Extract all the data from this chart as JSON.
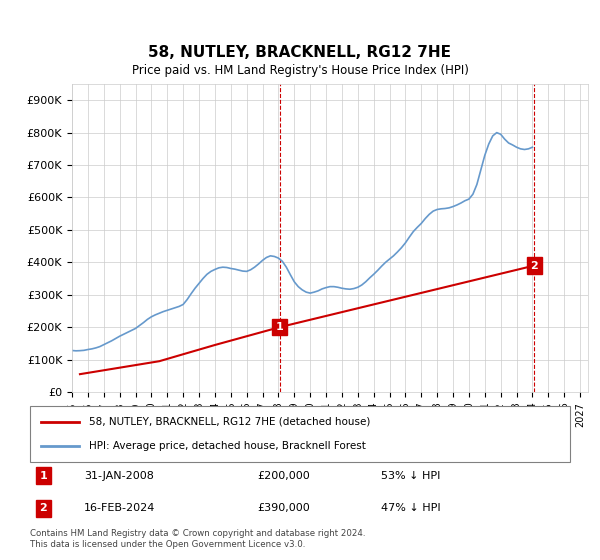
{
  "title": "58, NUTLEY, BRACKNELL, RG12 7HE",
  "subtitle": "Price paid vs. HM Land Registry's House Price Index (HPI)",
  "background_color": "#ffffff",
  "grid_color": "#cccccc",
  "ylim": [
    0,
    950000
  ],
  "yticks": [
    0,
    100000,
    200000,
    300000,
    400000,
    500000,
    600000,
    700000,
    800000,
    900000
  ],
  "ytick_labels": [
    "£0",
    "£100K",
    "£200K",
    "£300K",
    "£400K",
    "£500K",
    "£600K",
    "£700K",
    "£800K",
    "£900K"
  ],
  "xlim_start": 1995.0,
  "xlim_end": 2027.5,
  "xtick_years": [
    1995,
    1996,
    1997,
    1998,
    1999,
    2000,
    2001,
    2002,
    2003,
    2004,
    2005,
    2006,
    2007,
    2008,
    2009,
    2010,
    2011,
    2012,
    2013,
    2014,
    2015,
    2016,
    2017,
    2018,
    2019,
    2020,
    2021,
    2022,
    2023,
    2024,
    2025,
    2026,
    2027
  ],
  "transaction_color": "#cc0000",
  "hpi_color": "#6699cc",
  "marker1_x": 2008.08,
  "marker1_y": 200000,
  "marker2_x": 2024.12,
  "marker2_y": 390000,
  "annotation_box_color": "#cc0000",
  "legend_box_color": "#dddddd",
  "footer_text": "Contains HM Land Registry data © Crown copyright and database right 2024.\nThis data is licensed under the Open Government Licence v3.0.",
  "legend1_label": "58, NUTLEY, BRACKNELL, RG12 7HE (detached house)",
  "legend2_label": "HPI: Average price, detached house, Bracknell Forest",
  "table_row1": [
    "1",
    "31-JAN-2008",
    "£200,000",
    "53% ↓ HPI"
  ],
  "table_row2": [
    "2",
    "16-FEB-2024",
    "£390,000",
    "47% ↓ HPI"
  ],
  "hpi_x": [
    1995.0,
    1995.25,
    1995.5,
    1995.75,
    1996.0,
    1996.25,
    1996.5,
    1996.75,
    1997.0,
    1997.25,
    1997.5,
    1997.75,
    1998.0,
    1998.25,
    1998.5,
    1998.75,
    1999.0,
    1999.25,
    1999.5,
    1999.75,
    2000.0,
    2000.25,
    2000.5,
    2000.75,
    2001.0,
    2001.25,
    2001.5,
    2001.75,
    2002.0,
    2002.25,
    2002.5,
    2002.75,
    2003.0,
    2003.25,
    2003.5,
    2003.75,
    2004.0,
    2004.25,
    2004.5,
    2004.75,
    2005.0,
    2005.25,
    2005.5,
    2005.75,
    2006.0,
    2006.25,
    2006.5,
    2006.75,
    2007.0,
    2007.25,
    2007.5,
    2007.75,
    2008.0,
    2008.25,
    2008.5,
    2008.75,
    2009.0,
    2009.25,
    2009.5,
    2009.75,
    2010.0,
    2010.25,
    2010.5,
    2010.75,
    2011.0,
    2011.25,
    2011.5,
    2011.75,
    2012.0,
    2012.25,
    2012.5,
    2012.75,
    2013.0,
    2013.25,
    2013.5,
    2013.75,
    2014.0,
    2014.25,
    2014.5,
    2014.75,
    2015.0,
    2015.25,
    2015.5,
    2015.75,
    2016.0,
    2016.25,
    2016.5,
    2016.75,
    2017.0,
    2017.25,
    2017.5,
    2017.75,
    2018.0,
    2018.25,
    2018.5,
    2018.75,
    2019.0,
    2019.25,
    2019.5,
    2019.75,
    2020.0,
    2020.25,
    2020.5,
    2020.75,
    2021.0,
    2021.25,
    2021.5,
    2021.75,
    2022.0,
    2022.25,
    2022.5,
    2022.75,
    2023.0,
    2023.25,
    2023.5,
    2023.75,
    2024.0
  ],
  "hpi_y": [
    128000,
    127000,
    127500,
    128500,
    131000,
    133000,
    136000,
    140000,
    146000,
    152000,
    158000,
    165000,
    172000,
    178000,
    184000,
    190000,
    196000,
    205000,
    214000,
    224000,
    232000,
    238000,
    243000,
    248000,
    252000,
    256000,
    260000,
    264000,
    270000,
    285000,
    303000,
    320000,
    335000,
    350000,
    363000,
    372000,
    378000,
    383000,
    385000,
    384000,
    381000,
    379000,
    376000,
    373000,
    372000,
    377000,
    385000,
    395000,
    406000,
    415000,
    420000,
    418000,
    413000,
    403000,
    385000,
    362000,
    340000,
    325000,
    315000,
    308000,
    305000,
    308000,
    312000,
    318000,
    322000,
    325000,
    325000,
    323000,
    320000,
    318000,
    317000,
    319000,
    323000,
    330000,
    340000,
    352000,
    363000,
    375000,
    388000,
    400000,
    410000,
    420000,
    432000,
    445000,
    460000,
    478000,
    495000,
    508000,
    520000,
    535000,
    548000,
    558000,
    563000,
    565000,
    566000,
    568000,
    572000,
    577000,
    583000,
    590000,
    595000,
    610000,
    640000,
    685000,
    730000,
    765000,
    790000,
    800000,
    795000,
    780000,
    768000,
    762000,
    755000,
    750000,
    748000,
    750000,
    755000
  ],
  "transaction_x": [
    1995.5,
    2000.5,
    2004.0,
    2008.08,
    2024.12
  ],
  "transaction_y": [
    55000,
    95000,
    145000,
    200000,
    390000
  ]
}
